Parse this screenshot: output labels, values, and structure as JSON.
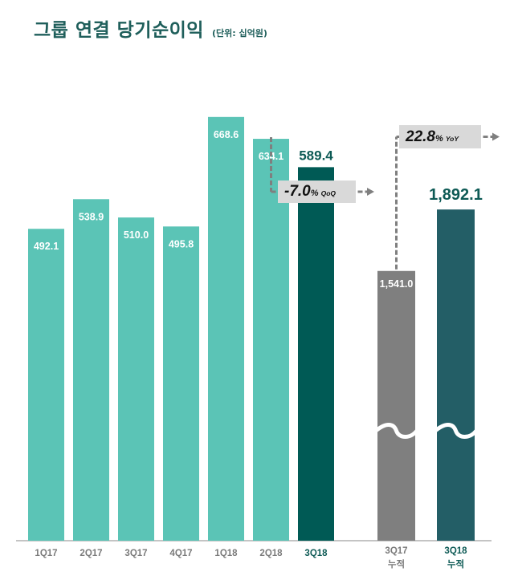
{
  "header": {
    "title": "그룹 연결 당기순이익",
    "unit": "(단위: 십억원)"
  },
  "colors": {
    "teal": "#5bc4b6",
    "dark_teal": "#005a55",
    "gray": "#7f7f7f",
    "slate": "#235e66",
    "callout_bg": "#d9d9d9",
    "arrow": "#7f7f7f"
  },
  "chart_data": [
    {
      "type": "bar",
      "title": "",
      "categories": [
        "1Q17",
        "2Q17",
        "3Q17",
        "4Q17",
        "1Q18",
        "2Q18",
        "3Q18"
      ],
      "values": [
        492.1,
        538.9,
        510.0,
        495.8,
        668.6,
        634.1,
        589.4
      ],
      "value_labels": [
        "492.1",
        "538.9",
        "510.0",
        "495.8",
        "668.6",
        "634.1",
        "589.4"
      ],
      "highlight": "3Q18",
      "annotation": {
        "value": "-7.0",
        "unit": "%",
        "tag": "QoQ",
        "from": "2Q18",
        "to": "3Q18"
      }
    },
    {
      "type": "bar",
      "title": "",
      "categories": [
        [
          "3Q17",
          "누적"
        ],
        [
          "3Q18",
          "누적"
        ]
      ],
      "values": [
        1541.0,
        1892.1
      ],
      "value_labels": [
        "1,541.0",
        "1,892.1"
      ],
      "axis_break": true,
      "annotation": {
        "value": "22.8",
        "unit": "%",
        "tag": "YoY",
        "from": "3Q17 누적",
        "to": "3Q18 누적"
      }
    }
  ]
}
